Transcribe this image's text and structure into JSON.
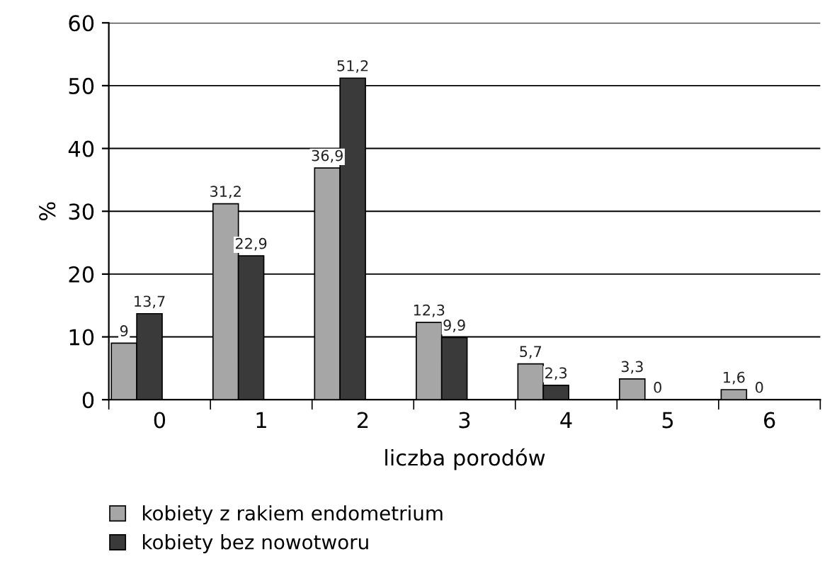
{
  "chart_data": {
    "type": "bar",
    "xlabel": "liczba porodów",
    "ylabel": "%",
    "categories": [
      "0",
      "1",
      "2",
      "3",
      "4",
      "5",
      "6"
    ],
    "series": [
      {
        "name": "kobiety z rakiem endometrium",
        "color": "#a6a6a6",
        "values": [
          9,
          31.2,
          36.9,
          12.3,
          5.7,
          3.3,
          1.6
        ],
        "value_labels": [
          "9",
          "31,2",
          "36,9",
          "12,3",
          "5,7",
          "3,3",
          "1,6"
        ]
      },
      {
        "name": "kobiety bez nowotworu",
        "color": "#3a3a3a",
        "values": [
          13.7,
          22.9,
          51.2,
          9.9,
          2.3,
          0,
          0
        ],
        "value_labels": [
          "13,7",
          "22,9",
          "51,2",
          "9,9",
          "2,3",
          "0",
          "0"
        ]
      }
    ],
    "ylim": [
      0,
      60
    ],
    "yticks": [
      0,
      10,
      20,
      30,
      40,
      50,
      60
    ],
    "grid": "y",
    "legend": "bottom left"
  }
}
